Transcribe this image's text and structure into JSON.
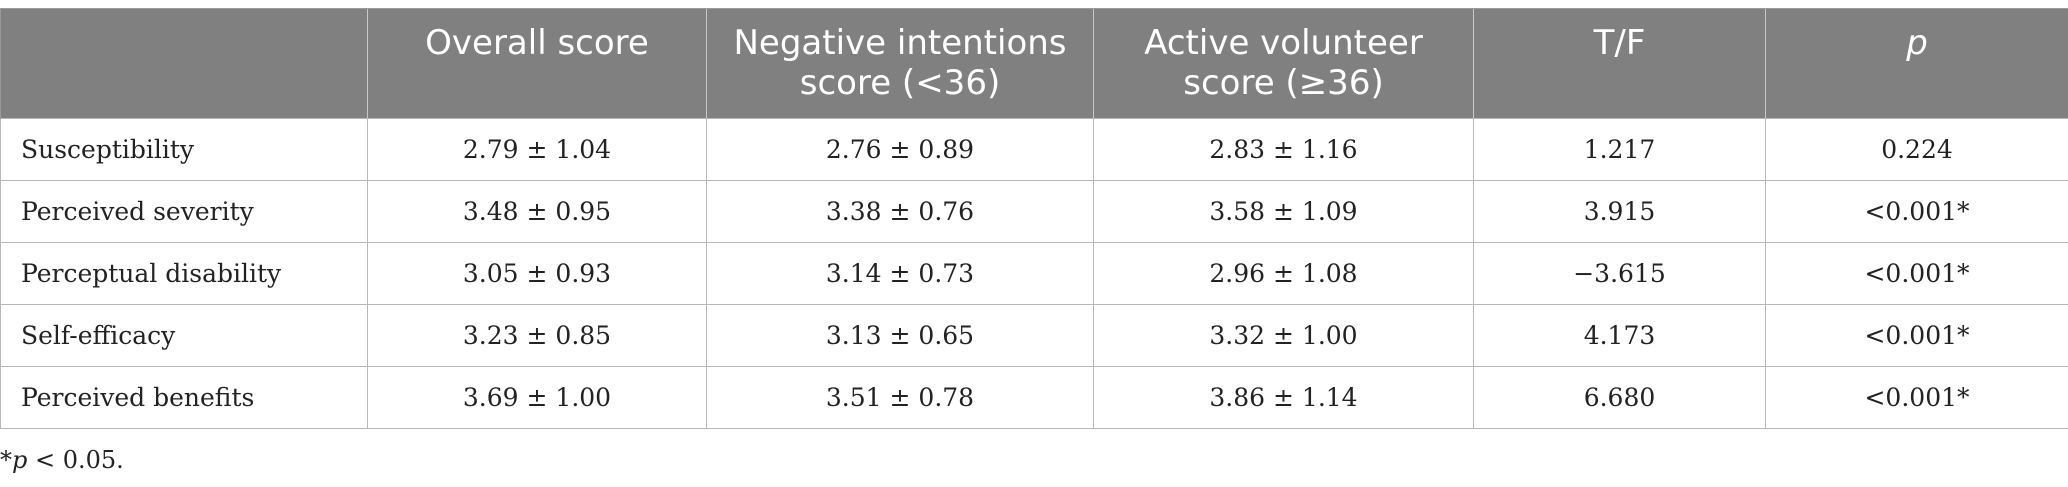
{
  "table": {
    "headers": [
      {
        "line1": "",
        "line2": ""
      },
      {
        "line1": "Overall score",
        "line2": ""
      },
      {
        "line1": "Negative intentions",
        "line2": "score (<36)"
      },
      {
        "line1": "Active volunteer",
        "line2": "score (≥36)"
      },
      {
        "line1": "T/F",
        "line2": ""
      },
      {
        "line1": "p",
        "line2": ""
      }
    ],
    "rows": [
      {
        "label": "Susceptibility",
        "overall": "2.79 ± 1.04",
        "negative": "2.76 ± 0.89",
        "active": "2.83 ± 1.16",
        "tf": "1.217",
        "p": "0.224"
      },
      {
        "label": "Perceived severity",
        "overall": "3.48 ± 0.95",
        "negative": "3.38 ± 0.76",
        "active": "3.58 ± 1.09",
        "tf": "3.915",
        "p": "<0.001*"
      },
      {
        "label": "Perceptual disability",
        "overall": "3.05 ± 0.93",
        "negative": "3.14 ± 0.73",
        "active": "2.96 ± 1.08",
        "tf": "−3.615",
        "p": "<0.001*"
      },
      {
        "label": "Self-efficacy",
        "overall": "3.23 ± 0.85",
        "negative": "3.13 ± 0.65",
        "active": "3.32 ± 1.00",
        "tf": "4.173",
        "p": "<0.001*"
      },
      {
        "label": "Perceived benefits",
        "overall": "3.69 ± 1.00",
        "negative": "3.51 ± 0.78",
        "active": "3.86 ± 1.14",
        "tf": "6.680",
        "p": "<0.001*"
      }
    ]
  },
  "footnote": {
    "star": "*",
    "p": "p",
    "rest": " < 0.05."
  }
}
